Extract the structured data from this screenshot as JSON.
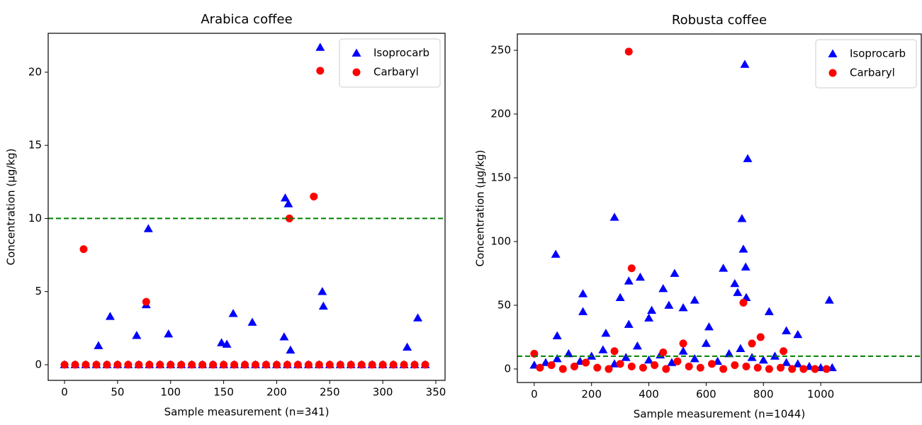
{
  "chart_data": [
    {
      "type": "scatter",
      "title": "Arabica coffee",
      "x_label": "Sample measurement (n=341)",
      "y_label": "Concentration (μg/kg)",
      "xlim": [
        -15.4,
        358.7
      ],
      "ylim": [
        -1.07,
        22.66
      ],
      "xticks": [
        0,
        50,
        100,
        150,
        200,
        250,
        300,
        350
      ],
      "yticks": [
        0,
        5,
        10,
        15,
        20
      ],
      "grid": false,
      "legend": "upper right",
      "reference_line": {
        "value": 10,
        "color": "#008000",
        "style": "dashed"
      },
      "series": [
        {
          "name": "Isoprocarb",
          "color": "#0000ff",
          "marker": "triangle",
          "x": [
            241,
            208,
            211,
            79,
            77,
            243,
            244,
            43,
            159,
            177,
            98,
            68,
            207,
            148,
            153,
            32,
            213,
            323,
            333,
            0,
            10,
            20,
            30,
            40,
            50,
            60,
            70,
            80,
            90,
            100,
            110,
            120,
            130,
            140,
            150,
            160,
            170,
            180,
            190,
            200,
            210,
            220,
            230,
            240,
            250,
            260,
            270,
            280,
            290,
            300,
            310,
            320,
            330,
            340
          ],
          "values": [
            21.7,
            11.4,
            11,
            9.3,
            4.1,
            5,
            4,
            3.3,
            3.5,
            2.9,
            2.1,
            2,
            1.9,
            1.5,
            1.4,
            1.3,
            1,
            1.2,
            3.2,
            0,
            0,
            0,
            0,
            0,
            0,
            0,
            0,
            0,
            0,
            0,
            0,
            0,
            0,
            0,
            0,
            0,
            0,
            0,
            0,
            0,
            0,
            0,
            0,
            0,
            0,
            0,
            0,
            0,
            0,
            0,
            0,
            0,
            0,
            0
          ]
        },
        {
          "name": "Carbaryl",
          "color": "#ff0000",
          "marker": "circle",
          "x": [
            241,
            235,
            212,
            18,
            77,
            0,
            10,
            20,
            30,
            40,
            50,
            60,
            70,
            80,
            90,
            100,
            110,
            120,
            130,
            140,
            150,
            160,
            170,
            180,
            190,
            200,
            210,
            220,
            230,
            240,
            250,
            260,
            270,
            280,
            290,
            300,
            310,
            320,
            330,
            340
          ],
          "values": [
            20.1,
            11.5,
            10,
            7.9,
            4.3,
            0,
            0,
            0,
            0,
            0,
            0,
            0,
            0,
            0,
            0,
            0,
            0,
            0,
            0,
            0,
            0,
            0,
            0,
            0,
            0,
            0,
            0,
            0,
            0,
            0,
            0,
            0,
            0,
            0,
            0,
            0,
            0,
            0,
            0,
            0
          ]
        }
      ]
    },
    {
      "type": "scatter",
      "title": "Robusta coffee",
      "x_label": "Sample measurement (n=1044)",
      "y_label": "Concentration (μg/kg)",
      "xlim": [
        -59,
        1351
      ],
      "ylim": [
        -10.6,
        262.8
      ],
      "xticks": [
        0,
        200,
        400,
        600,
        800,
        1000
      ],
      "yticks": [
        0,
        50,
        100,
        150,
        200,
        250
      ],
      "grid": false,
      "legend": "upper right",
      "reference_line": {
        "value": 10,
        "color": "#008000",
        "style": "dashed"
      },
      "series": [
        {
          "name": "Isoprocarb",
          "color": "#0000ff",
          "marker": "triangle",
          "x": [
            735,
            745,
            280,
            725,
            75,
            730,
            738,
            660,
            490,
            370,
            330,
            700,
            710,
            170,
            450,
            560,
            1030,
            740,
            300,
            410,
            820,
            400,
            470,
            520,
            170,
            330,
            610,
            920,
            80,
            250,
            880,
            0,
            40,
            80,
            120,
            160,
            200,
            240,
            280,
            320,
            360,
            400,
            440,
            480,
            520,
            560,
            600,
            640,
            680,
            720,
            760,
            800,
            840,
            880,
            920,
            960,
            1000,
            1040
          ],
          "values": [
            239,
            165,
            119,
            118,
            90,
            94,
            80,
            79,
            75,
            72,
            69,
            67,
            60,
            59,
            63,
            54,
            54,
            56,
            56,
            46,
            45,
            40,
            50,
            48,
            45,
            35,
            33,
            27,
            26,
            28,
            30,
            3,
            5,
            8,
            12,
            6,
            10,
            15,
            4,
            9,
            18,
            7,
            11,
            5,
            14,
            8,
            20,
            6,
            12,
            16,
            9,
            7,
            10,
            5,
            4,
            2,
            1,
            1
          ]
        },
        {
          "name": "Carbaryl",
          "color": "#ff0000",
          "marker": "circle",
          "x": [
            330,
            340,
            730,
            790,
            760,
            520,
            870,
            280,
            0,
            450,
            20,
            60,
            100,
            140,
            180,
            220,
            260,
            300,
            340,
            380,
            420,
            460,
            500,
            540,
            580,
            620,
            660,
            700,
            740,
            780,
            820,
            860,
            900,
            940,
            980,
            1020
          ],
          "values": [
            249,
            79,
            52,
            25,
            20,
            20,
            14,
            14,
            12,
            13,
            1,
            3,
            0,
            2,
            5,
            1,
            0,
            4,
            2,
            1,
            3,
            0,
            6,
            2,
            1,
            4,
            0,
            3,
            2,
            1,
            0,
            1,
            0,
            0,
            0,
            0
          ]
        }
      ]
    }
  ]
}
